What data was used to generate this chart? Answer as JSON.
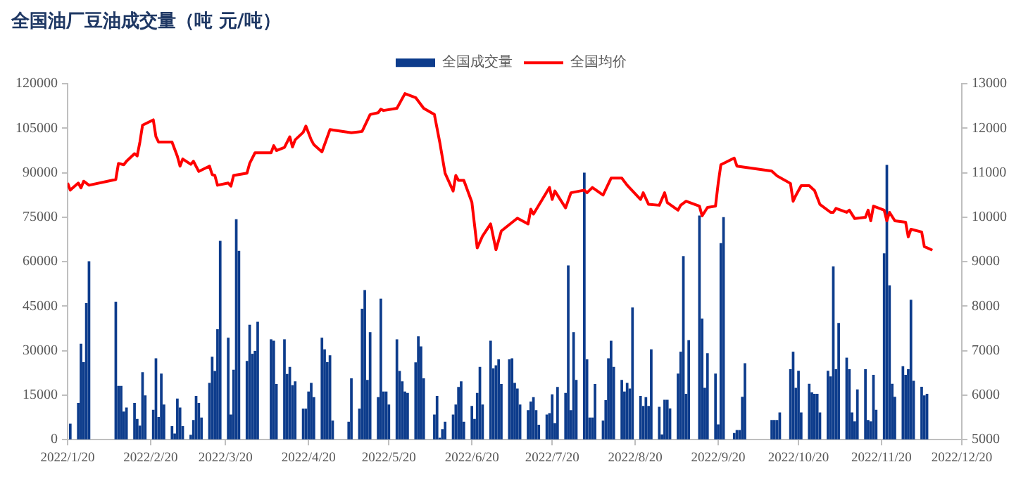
{
  "chart_data": {
    "type": "bar",
    "title": "全国油厂豆油成交量（吨 元/吨）",
    "xlim": [
      "2022-01-20",
      "2022-12-20"
    ],
    "xticks": [
      {
        "value": "2022-01-20",
        "label": "2022/1/20"
      },
      {
        "value": "2022-02-20",
        "label": "2022/2/20"
      },
      {
        "value": "2022-03-20",
        "label": "2022/3/20"
      },
      {
        "value": "2022-04-20",
        "label": "2022/4/20"
      },
      {
        "value": "2022-05-20",
        "label": "2022/5/20"
      },
      {
        "value": "2022-06-20",
        "label": "2022/6/20"
      },
      {
        "value": "2022-07-20",
        "label": "2022/7/20"
      },
      {
        "value": "2022-08-20",
        "label": "2022/8/20"
      },
      {
        "value": "2022-09-20",
        "label": "2022/9/20"
      },
      {
        "value": "2022-10-20",
        "label": "2022/10/20"
      },
      {
        "value": "2022-11-20",
        "label": "2022/11/20"
      },
      {
        "value": "2022-12-20",
        "label": "2022/12/20"
      }
    ],
    "ylim": [
      0,
      120000
    ],
    "yticks": [
      0,
      15000,
      30000,
      45000,
      60000,
      75000,
      90000,
      105000,
      120000
    ],
    "y2lim": [
      5000,
      13000
    ],
    "y2ticks": [
      5000,
      6000,
      7000,
      8000,
      9000,
      10000,
      11000,
      12000,
      13000
    ],
    "grid": false,
    "legend": "top",
    "series": [
      {
        "name": "全国成交量",
        "color": "#0d3c8c",
        "x": [
          "2022-01-21",
          "2022-01-24",
          "2022-01-25",
          "2022-01-26",
          "2022-01-27",
          "2022-01-28",
          "2022-02-07",
          "2022-02-08",
          "2022-02-09",
          "2022-02-10",
          "2022-02-11",
          "2022-02-14",
          "2022-02-15",
          "2022-02-16",
          "2022-02-17",
          "2022-02-18",
          "2022-02-21",
          "2022-02-22",
          "2022-02-23",
          "2022-02-24",
          "2022-02-25",
          "2022-02-28",
          "2022-03-01",
          "2022-03-02",
          "2022-03-03",
          "2022-03-04",
          "2022-03-07",
          "2022-03-08",
          "2022-03-09",
          "2022-03-10",
          "2022-03-11",
          "2022-03-14",
          "2022-03-15",
          "2022-03-16",
          "2022-03-17",
          "2022-03-18",
          "2022-03-21",
          "2022-03-22",
          "2022-03-23",
          "2022-03-24",
          "2022-03-25",
          "2022-03-28",
          "2022-03-29",
          "2022-03-30",
          "2022-03-31",
          "2022-04-01",
          "2022-04-06",
          "2022-04-07",
          "2022-04-08",
          "2022-04-11",
          "2022-04-12",
          "2022-04-13",
          "2022-04-14",
          "2022-04-15",
          "2022-04-18",
          "2022-04-19",
          "2022-04-20",
          "2022-04-21",
          "2022-04-22",
          "2022-04-25",
          "2022-04-26",
          "2022-04-27",
          "2022-04-28",
          "2022-04-29",
          "2022-05-05",
          "2022-05-06",
          "2022-05-09",
          "2022-05-10",
          "2022-05-11",
          "2022-05-12",
          "2022-05-13",
          "2022-05-16",
          "2022-05-17",
          "2022-05-18",
          "2022-05-19",
          "2022-05-20",
          "2022-05-23",
          "2022-05-24",
          "2022-05-25",
          "2022-05-26",
          "2022-05-27",
          "2022-05-30",
          "2022-05-31",
          "2022-06-01",
          "2022-06-02",
          "2022-06-06",
          "2022-06-07",
          "2022-06-08",
          "2022-06-09",
          "2022-06-10",
          "2022-06-13",
          "2022-06-14",
          "2022-06-15",
          "2022-06-16",
          "2022-06-17",
          "2022-06-20",
          "2022-06-21",
          "2022-06-22",
          "2022-06-23",
          "2022-06-24",
          "2022-06-27",
          "2022-06-28",
          "2022-06-29",
          "2022-06-30",
          "2022-07-01",
          "2022-07-04",
          "2022-07-05",
          "2022-07-06",
          "2022-07-07",
          "2022-07-08",
          "2022-07-11",
          "2022-07-12",
          "2022-07-13",
          "2022-07-14",
          "2022-07-15",
          "2022-07-18",
          "2022-07-19",
          "2022-07-20",
          "2022-07-21",
          "2022-07-22",
          "2022-07-25",
          "2022-07-26",
          "2022-07-27",
          "2022-07-28",
          "2022-07-29",
          "2022-08-01",
          "2022-08-02",
          "2022-08-03",
          "2022-08-04",
          "2022-08-05",
          "2022-08-08",
          "2022-08-09",
          "2022-08-10",
          "2022-08-11",
          "2022-08-12",
          "2022-08-15",
          "2022-08-16",
          "2022-08-17",
          "2022-08-18",
          "2022-08-19",
          "2022-08-22",
          "2022-08-23",
          "2022-08-24",
          "2022-08-25",
          "2022-08-26",
          "2022-08-29",
          "2022-08-30",
          "2022-08-31",
          "2022-09-01",
          "2022-09-02",
          "2022-09-05",
          "2022-09-06",
          "2022-09-07",
          "2022-09-08",
          "2022-09-09",
          "2022-09-13",
          "2022-09-14",
          "2022-09-15",
          "2022-09-16",
          "2022-09-19",
          "2022-09-20",
          "2022-09-21",
          "2022-09-22",
          "2022-09-26",
          "2022-09-27",
          "2022-09-28",
          "2022-09-29",
          "2022-09-30",
          "2022-10-10",
          "2022-10-11",
          "2022-10-12",
          "2022-10-13",
          "2022-10-17",
          "2022-10-18",
          "2022-10-19",
          "2022-10-20",
          "2022-10-21",
          "2022-10-24",
          "2022-10-25",
          "2022-10-26",
          "2022-10-27",
          "2022-10-28",
          "2022-10-31",
          "2022-11-01",
          "2022-11-02",
          "2022-11-03",
          "2022-11-04",
          "2022-11-07",
          "2022-11-08",
          "2022-11-09",
          "2022-11-10",
          "2022-11-11",
          "2022-11-14",
          "2022-11-15",
          "2022-11-16",
          "2022-11-17",
          "2022-11-18",
          "2022-11-21",
          "2022-11-22",
          "2022-11-23",
          "2022-11-24",
          "2022-11-25",
          "2022-11-28",
          "2022-11-29",
          "2022-11-30",
          "2022-12-01",
          "2022-12-02",
          "2022-12-05",
          "2022-12-06",
          "2022-12-07"
        ],
        "values": [
          5200,
          12200,
          32200,
          26000,
          45900,
          60000,
          46400,
          18000,
          18000,
          9300,
          10700,
          12200,
          6800,
          4600,
          22600,
          14800,
          9900,
          27300,
          7500,
          22100,
          11700,
          4400,
          1900,
          13700,
          10700,
          4400,
          1500,
          6500,
          14600,
          12200,
          7300,
          19000,
          27800,
          23000,
          37100,
          66900,
          34200,
          8300,
          23400,
          74200,
          63500,
          26400,
          38600,
          28800,
          29800,
          39600,
          33700,
          33200,
          18600,
          33700,
          22000,
          24400,
          18200,
          19500,
          10300,
          10300,
          16100,
          19000,
          14200,
          34200,
          30300,
          26000,
          28300,
          6300,
          5900,
          20500,
          10300,
          44000,
          50300,
          20000,
          36100,
          14200,
          47400,
          16100,
          16100,
          11700,
          33700,
          23000,
          19500,
          16100,
          15600,
          25900,
          34700,
          31300,
          20500,
          8300,
          14600,
          500,
          3400,
          5900,
          8300,
          11700,
          17600,
          19500,
          5900,
          11200,
          6800,
          15600,
          24400,
          11700,
          33200,
          23900,
          24900,
          26900,
          18600,
          26900,
          27300,
          19000,
          17100,
          11700,
          9800,
          12700,
          14200,
          9800,
          4900,
          8300,
          8800,
          15100,
          5400,
          17600,
          15600,
          58600,
          9800,
          36100,
          20000,
          89900,
          26900,
          7300,
          7300,
          18600,
          6300,
          13200,
          27300,
          33200,
          24400,
          20000,
          16100,
          19000,
          17100,
          44400,
          14600,
          11200,
          14200,
          11200,
          30300,
          10900,
          1600,
          13300,
          13300,
          10400,
          22100,
          29500,
          61700,
          15300,
          33400,
          75400,
          40700,
          17300,
          29000,
          22100,
          5000,
          66100,
          74900,
          2100,
          3100,
          3100,
          14300,
          25600,
          6500,
          6500,
          6500,
          9000,
          23600,
          29500,
          17300,
          23100,
          9000,
          18700,
          15800,
          15300,
          15300,
          9000,
          23100,
          21200,
          58300,
          23600,
          39200,
          27500,
          23600,
          9000,
          6000,
          16800,
          23600,
          6500,
          6000,
          21700,
          9900,
          62700,
          92500,
          51900,
          18700,
          14300,
          24600,
          21700,
          23600,
          47000,
          19700,
          17700,
          14800,
          15300
        ]
      },
      {
        "name": "全国均价",
        "type": "line",
        "axis": "y2",
        "color": "#ff0000",
        "x": [
          "2022-01-20",
          "2022-01-21",
          "2022-01-24",
          "2022-01-25",
          "2022-01-26",
          "2022-01-28",
          "2022-02-07",
          "2022-02-08",
          "2022-02-10",
          "2022-02-11",
          "2022-02-14",
          "2022-02-15",
          "2022-02-16",
          "2022-02-17",
          "2022-02-21",
          "2022-02-22",
          "2022-02-23",
          "2022-02-28",
          "2022-03-02",
          "2022-03-03",
          "2022-03-04",
          "2022-03-07",
          "2022-03-08",
          "2022-03-10",
          "2022-03-14",
          "2022-03-15",
          "2022-03-16",
          "2022-03-17",
          "2022-03-21",
          "2022-03-22",
          "2022-03-23",
          "2022-03-28",
          "2022-03-29",
          "2022-03-31",
          "2022-04-06",
          "2022-04-07",
          "2022-04-08",
          "2022-04-11",
          "2022-04-13",
          "2022-04-14",
          "2022-04-15",
          "2022-04-18",
          "2022-04-19",
          "2022-04-21",
          "2022-04-22",
          "2022-04-25",
          "2022-04-28",
          "2022-05-06",
          "2022-05-10",
          "2022-05-13",
          "2022-05-16",
          "2022-05-17",
          "2022-05-18",
          "2022-05-23",
          "2022-05-26",
          "2022-05-30",
          "2022-06-02",
          "2022-06-06",
          "2022-06-08",
          "2022-06-10",
          "2022-06-13",
          "2022-06-14",
          "2022-06-15",
          "2022-06-17",
          "2022-06-20",
          "2022-06-22",
          "2022-06-24",
          "2022-06-27",
          "2022-06-29",
          "2022-07-01",
          "2022-07-07",
          "2022-07-11",
          "2022-07-12",
          "2022-07-13",
          "2022-07-19",
          "2022-07-20",
          "2022-07-21",
          "2022-07-25",
          "2022-07-27",
          "2022-08-01",
          "2022-08-02",
          "2022-08-04",
          "2022-08-08",
          "2022-08-11",
          "2022-08-15",
          "2022-08-17",
          "2022-08-22",
          "2022-08-23",
          "2022-08-25",
          "2022-08-29",
          "2022-08-31",
          "2022-09-01",
          "2022-09-05",
          "2022-09-06",
          "2022-09-08",
          "2022-09-13",
          "2022-09-14",
          "2022-09-16",
          "2022-09-19",
          "2022-09-20",
          "2022-09-21",
          "2022-09-26",
          "2022-09-27",
          "2022-10-10",
          "2022-10-12",
          "2022-10-17",
          "2022-10-18",
          "2022-10-19",
          "2022-10-21",
          "2022-10-24",
          "2022-10-26",
          "2022-10-28",
          "2022-11-01",
          "2022-11-02",
          "2022-11-03",
          "2022-11-07",
          "2022-11-08",
          "2022-11-10",
          "2022-11-14",
          "2022-11-15",
          "2022-11-16",
          "2022-11-17",
          "2022-11-21",
          "2022-11-22",
          "2022-11-23",
          "2022-11-25",
          "2022-11-29",
          "2022-11-30",
          "2022-12-01",
          "2022-12-05",
          "2022-12-06",
          "2022-12-09"
        ],
        "values": [
          10770,
          10610,
          10770,
          10660,
          10810,
          10720,
          10850,
          11210,
          11180,
          11260,
          11430,
          11380,
          11690,
          12070,
          12190,
          11810,
          11690,
          11690,
          11370,
          11150,
          11310,
          11190,
          11260,
          11030,
          11150,
          10960,
          10940,
          10720,
          10770,
          10700,
          10940,
          10990,
          11210,
          11450,
          11450,
          11610,
          11500,
          11570,
          11810,
          11580,
          11740,
          11910,
          12050,
          11740,
          11630,
          11470,
          11970,
          11900,
          11930,
          12310,
          12350,
          12430,
          12400,
          12450,
          12780,
          12690,
          12450,
          12310,
          11690,
          10990,
          10590,
          10940,
          10830,
          10830,
          10340,
          9310,
          9580,
          9850,
          9270,
          9690,
          9980,
          9850,
          10180,
          10070,
          10670,
          10400,
          10590,
          10210,
          10550,
          10610,
          10550,
          10670,
          10500,
          10880,
          10880,
          10720,
          10400,
          10550,
          10290,
          10270,
          10550,
          10330,
          10160,
          10270,
          10360,
          10250,
          10030,
          10220,
          10250,
          10760,
          11180,
          11330,
          11150,
          11040,
          10930,
          10760,
          10360,
          10490,
          10710,
          10710,
          10600,
          10290,
          10110,
          10110,
          10200,
          10110,
          10160,
          9970,
          10000,
          10160,
          9920,
          10250,
          10160,
          9920,
          10110,
          9920,
          9890,
          9560,
          9730,
          9670,
          9340,
          9260
        ]
      }
    ]
  }
}
